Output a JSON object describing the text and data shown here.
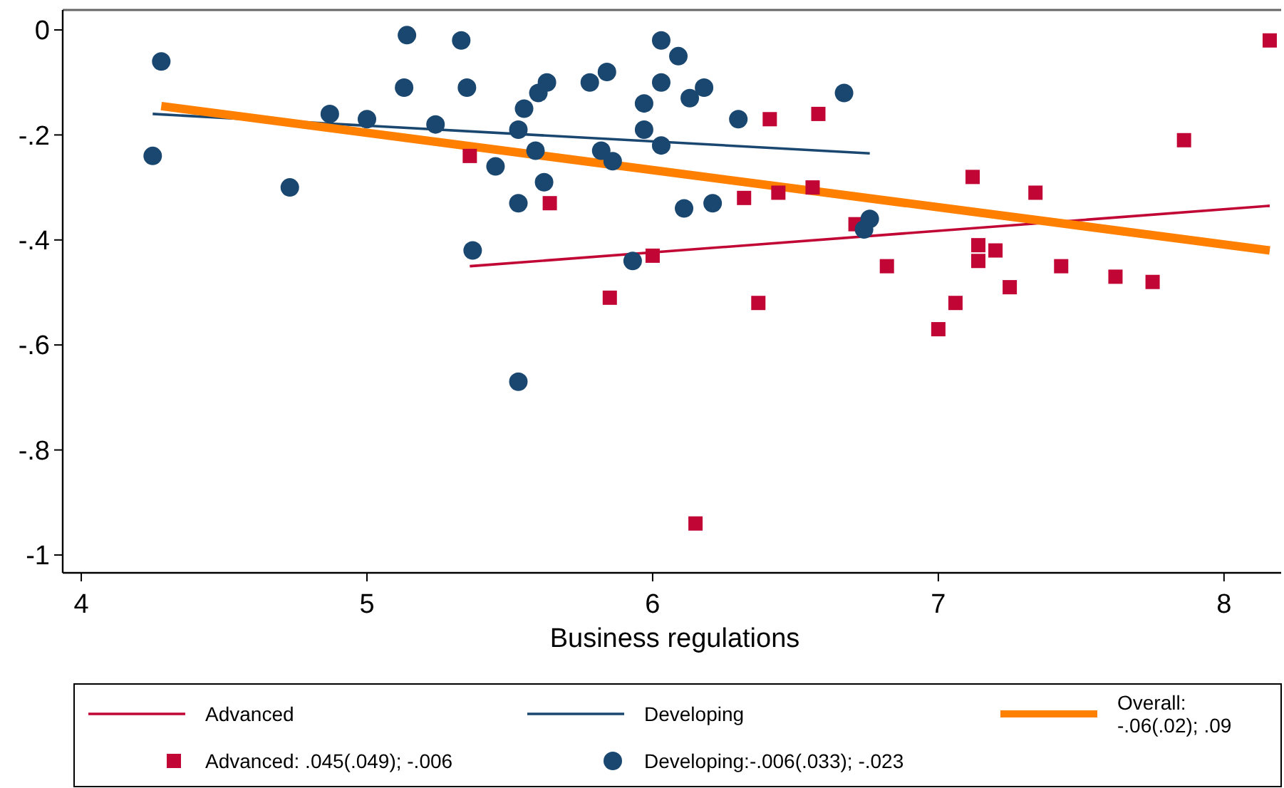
{
  "chart_data": {
    "type": "scatter",
    "xlabel": "Business regulations",
    "xlim": [
      3.935,
      8.2
    ],
    "ylim": [
      -1.034,
      0.038
    ],
    "xticks": [
      4,
      5,
      6,
      7,
      8
    ],
    "yticks": [
      0,
      {
        "value": -0.2,
        "label": "-.2"
      },
      {
        "value": -0.4,
        "label": "-.4"
      },
      {
        "value": -0.6,
        "label": "-.6"
      },
      {
        "value": -0.8,
        "label": "-.8"
      },
      -1
    ],
    "legend": "bottom",
    "grid": false,
    "series": [
      {
        "name": "Advanced",
        "type": "line",
        "color": "#c10534",
        "x": [
          5.36,
          8.16
        ],
        "values": [
          -0.45,
          -0.335
        ]
      },
      {
        "name": "Developing",
        "type": "line",
        "color": "#1a476f",
        "x": [
          4.25,
          6.76
        ],
        "values": [
          -0.16,
          -0.235
        ]
      },
      {
        "name": "Overall: -.06(.02); .09",
        "type": "line",
        "color": "#ff8000",
        "x": [
          4.28,
          8.16
        ],
        "values": [
          -0.145,
          -0.42
        ]
      },
      {
        "name": "Advanced: .045(.049); -.006",
        "marker": "square",
        "color": "#c10534",
        "x": [
          5.36,
          5.64,
          5.85,
          6.0,
          6.15,
          6.32,
          6.37,
          6.41,
          6.44,
          6.56,
          6.58,
          6.71,
          6.82,
          7.0,
          7.06,
          7.12,
          7.14,
          7.14,
          7.2,
          7.25,
          7.34,
          7.43,
          7.62,
          7.75,
          7.86,
          8.16
        ],
        "values": [
          -0.24,
          -0.33,
          -0.51,
          -0.43,
          -0.94,
          -0.32,
          -0.52,
          -0.17,
          -0.31,
          -0.3,
          -0.16,
          -0.37,
          -0.45,
          -0.57,
          -0.52,
          -0.28,
          -0.41,
          -0.44,
          -0.42,
          -0.49,
          -0.31,
          -0.45,
          -0.47,
          -0.48,
          -0.21,
          -0.02
        ]
      },
      {
        "name": "Developing:-.006(.033); -.023",
        "marker": "circle",
        "color": "#1a476f",
        "x": [
          4.25,
          4.28,
          4.73,
          4.87,
          5.0,
          5.14,
          5.13,
          5.24,
          5.33,
          5.35,
          5.37,
          5.45,
          5.53,
          5.53,
          5.53,
          5.55,
          5.6,
          5.63,
          5.59,
          5.62,
          5.78,
          5.84,
          5.82,
          5.86,
          5.93,
          5.97,
          5.97,
          6.03,
          6.09,
          6.03,
          6.03,
          6.13,
          6.18,
          6.11,
          6.21,
          6.3,
          6.67,
          6.76,
          6.74
        ],
        "values": [
          -0.24,
          -0.06,
          -0.3,
          -0.16,
          -0.17,
          -0.01,
          -0.11,
          -0.18,
          -0.02,
          -0.11,
          -0.42,
          -0.26,
          -0.33,
          -0.67,
          -0.19,
          -0.15,
          -0.12,
          -0.1,
          -0.23,
          -0.29,
          -0.1,
          -0.08,
          -0.23,
          -0.25,
          -0.44,
          -0.14,
          -0.19,
          -0.02,
          -0.05,
          -0.1,
          -0.22,
          -0.13,
          -0.11,
          -0.34,
          -0.33,
          -0.17,
          -0.12,
          -0.36,
          -0.38
        ]
      }
    ]
  }
}
